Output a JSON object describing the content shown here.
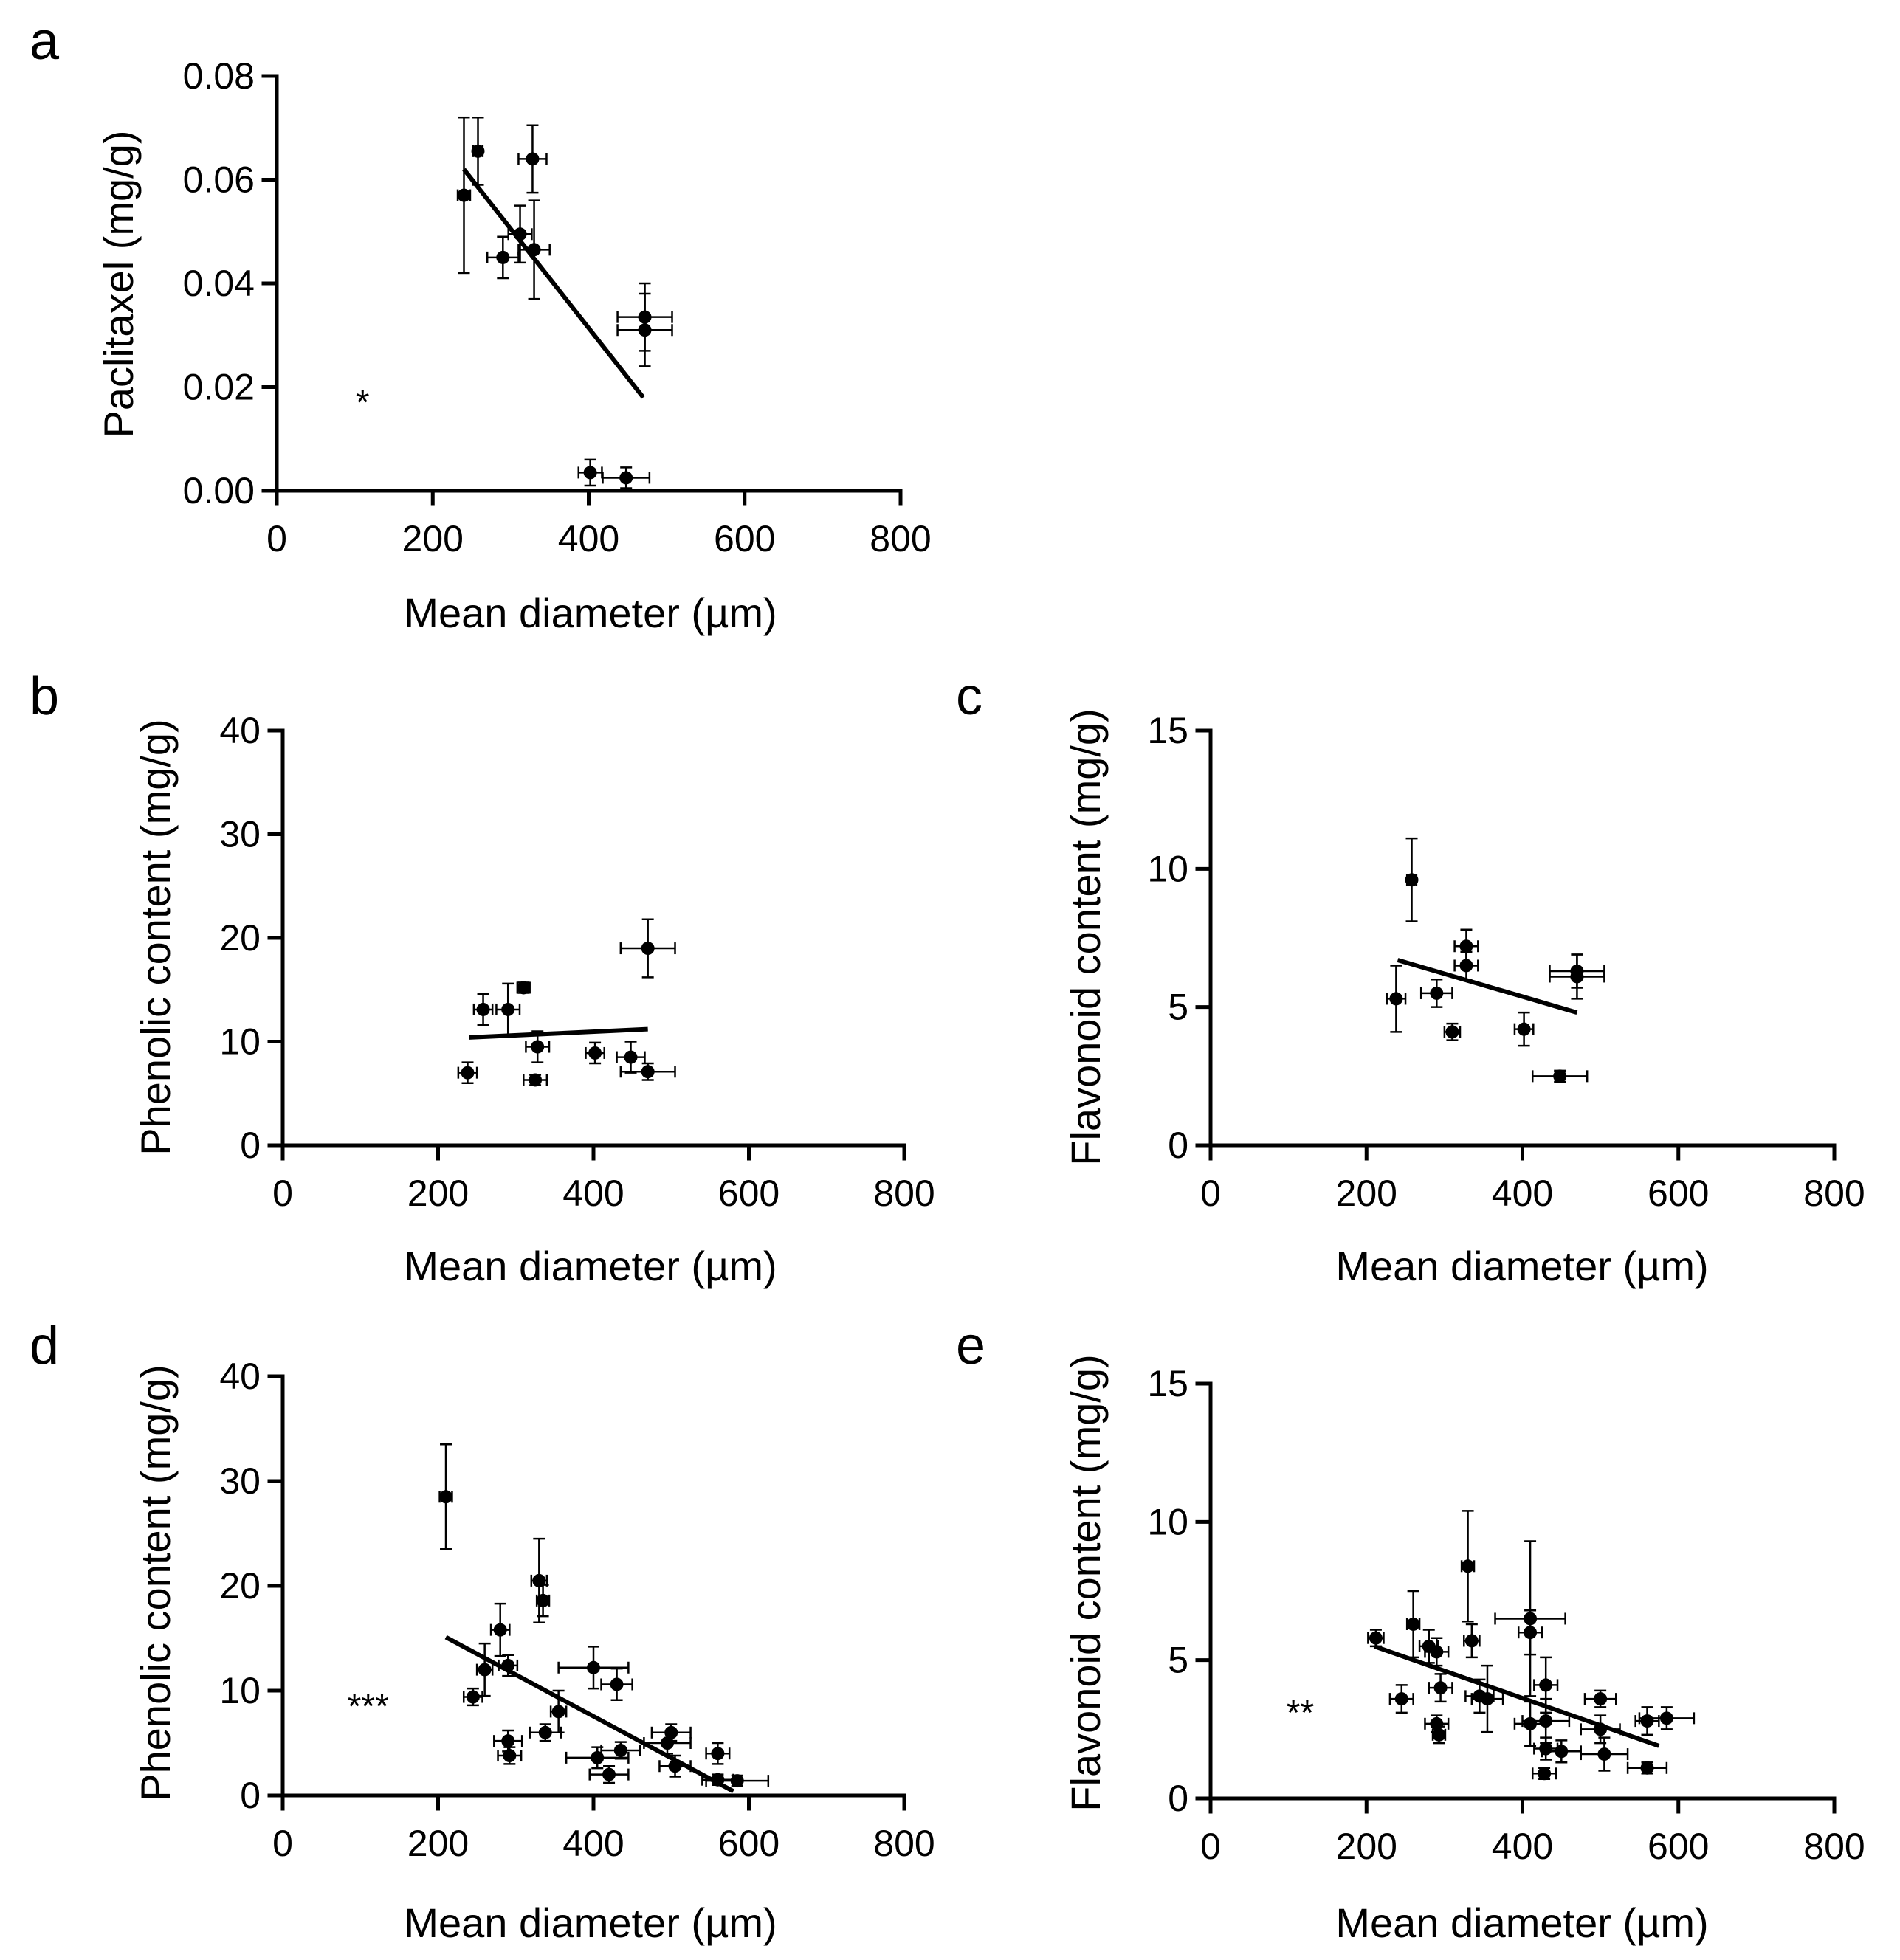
{
  "figure": {
    "colors": {
      "ink": "#000000",
      "background": "#ffffff"
    },
    "panels": [
      "a",
      "b",
      "c",
      "d",
      "e"
    ]
  },
  "chart_data": [
    {
      "id": "a",
      "type": "scatter",
      "panel_label": "a",
      "xlabel": "Mean diameter (µm)",
      "ylabel": "Paclitaxel (mg/g)",
      "xlim": [
        0,
        800
      ],
      "ylim": [
        0,
        0.08
      ],
      "xticks": [
        0,
        200,
        400,
        600,
        800
      ],
      "xtick_labels": [
        "0",
        "200",
        "400",
        "600",
        "800"
      ],
      "yticks": [
        0,
        0.02,
        0.04,
        0.06,
        0.08
      ],
      "ytick_labels": [
        "0.00",
        "0.02",
        "0.04",
        "0.06",
        "0.08"
      ],
      "significance": "*",
      "significance_at": [
        110,
        0.017
      ],
      "fit_line": [
        [
          240,
          0.062
        ],
        [
          470,
          0.018
        ]
      ],
      "points": [
        {
          "x": 240,
          "y": 0.057,
          "xerr": 8,
          "yerr": 0.015
        },
        {
          "x": 258,
          "y": 0.0655,
          "xerr": 6,
          "yerr": 0.0065
        },
        {
          "x": 290,
          "y": 0.045,
          "xerr": 20,
          "yerr": 0.004
        },
        {
          "x": 312,
          "y": 0.0495,
          "xerr": 15,
          "yerr": 0.0055
        },
        {
          "x": 328,
          "y": 0.064,
          "xerr": 18,
          "yerr": 0.0065
        },
        {
          "x": 330,
          "y": 0.0465,
          "xerr": 20,
          "yerr": 0.0095
        },
        {
          "x": 472,
          "y": 0.0335,
          "xerr": 35,
          "yerr": 0.0065
        },
        {
          "x": 472,
          "y": 0.031,
          "xerr": 35,
          "yerr": 0.007
        },
        {
          "x": 402,
          "y": 0.0035,
          "xerr": 15,
          "yerr": 0.0025
        },
        {
          "x": 448,
          "y": 0.0025,
          "xerr": 30,
          "yerr": 0.002
        }
      ]
    },
    {
      "id": "b",
      "type": "scatter",
      "panel_label": "b",
      "xlabel": "Mean diameter (µm)",
      "ylabel": "Phenolic content (mg/g)",
      "xlim": [
        0,
        800
      ],
      "ylim": [
        0,
        40
      ],
      "xticks": [
        0,
        200,
        400,
        600,
        800
      ],
      "xtick_labels": [
        "0",
        "200",
        "400",
        "600",
        "800"
      ],
      "yticks": [
        0,
        10,
        20,
        30,
        40
      ],
      "ytick_labels": [
        "0",
        "10",
        "20",
        "30",
        "40"
      ],
      "significance": "",
      "fit_line": [
        [
          240,
          10.4
        ],
        [
          470,
          11.2
        ]
      ],
      "points": [
        {
          "x": 238,
          "y": 7.0,
          "xerr": 12,
          "yerr": 1.0
        },
        {
          "x": 258,
          "y": 13.1,
          "xerr": 12,
          "yerr": 1.5
        },
        {
          "x": 290,
          "y": 13.1,
          "xerr": 15,
          "yerr": 2.5
        },
        {
          "x": 310,
          "y": 15.2,
          "xerr": 8,
          "yerr": 0.5
        },
        {
          "x": 328,
          "y": 9.5,
          "xerr": 15,
          "yerr": 1.5
        },
        {
          "x": 325,
          "y": 6.3,
          "xerr": 15,
          "yerr": 0.5
        },
        {
          "x": 402,
          "y": 8.9,
          "xerr": 12,
          "yerr": 1.0
        },
        {
          "x": 448,
          "y": 8.5,
          "xerr": 18,
          "yerr": 1.5
        },
        {
          "x": 470,
          "y": 19.0,
          "xerr": 35,
          "yerr": 2.8
        },
        {
          "x": 470,
          "y": 7.1,
          "xerr": 35,
          "yerr": 0.8
        }
      ]
    },
    {
      "id": "c",
      "type": "scatter",
      "panel_label": "c",
      "xlabel": "Mean diameter (µm)",
      "ylabel": "Flavonoid content (mg/g)",
      "xlim": [
        0,
        800
      ],
      "ylim": [
        0,
        15
      ],
      "xticks": [
        0,
        200,
        400,
        600,
        800
      ],
      "xtick_labels": [
        "0",
        "200",
        "400",
        "600",
        "800"
      ],
      "yticks": [
        0,
        5,
        10,
        15
      ],
      "ytick_labels": [
        "0",
        "5",
        "10",
        "15"
      ],
      "significance": "",
      "fit_line": [
        [
          240,
          6.7
        ],
        [
          470,
          4.8
        ]
      ],
      "points": [
        {
          "x": 238,
          "y": 5.3,
          "xerr": 12,
          "yerr": 1.2
        },
        {
          "x": 258,
          "y": 9.6,
          "xerr": 6,
          "yerr": 1.5
        },
        {
          "x": 290,
          "y": 5.5,
          "xerr": 20,
          "yerr": 0.5
        },
        {
          "x": 310,
          "y": 4.1,
          "xerr": 10,
          "yerr": 0.3
        },
        {
          "x": 328,
          "y": 7.2,
          "xerr": 15,
          "yerr": 0.6
        },
        {
          "x": 328,
          "y": 6.5,
          "xerr": 15,
          "yerr": 0.5
        },
        {
          "x": 402,
          "y": 4.2,
          "xerr": 12,
          "yerr": 0.6
        },
        {
          "x": 448,
          "y": 2.5,
          "xerr": 35,
          "yerr": 0.2
        },
        {
          "x": 470,
          "y": 6.3,
          "xerr": 35,
          "yerr": 0.6
        },
        {
          "x": 470,
          "y": 6.1,
          "xerr": 35,
          "yerr": 0.8
        }
      ]
    },
    {
      "id": "d",
      "type": "scatter",
      "panel_label": "d",
      "xlabel": "Mean diameter (µm)",
      "ylabel": "Phenolic content (mg/g)",
      "xlim": [
        0,
        800
      ],
      "ylim": [
        0,
        40
      ],
      "xticks": [
        0,
        200,
        400,
        600,
        800
      ],
      "xtick_labels": [
        "0",
        "200",
        "400",
        "600",
        "800"
      ],
      "yticks": [
        0,
        10,
        20,
        30,
        40
      ],
      "ytick_labels": [
        "0",
        "10",
        "20",
        "30",
        "40"
      ],
      "significance": "***",
      "significance_at": [
        110,
        8.5
      ],
      "fit_line": [
        [
          210,
          15.1
        ],
        [
          580,
          0.4
        ]
      ],
      "points": [
        {
          "x": 210,
          "y": 28.5,
          "xerr": 8,
          "yerr": 5.0
        },
        {
          "x": 245,
          "y": 9.4,
          "xerr": 12,
          "yerr": 0.8
        },
        {
          "x": 260,
          "y": 12.0,
          "xerr": 10,
          "yerr": 2.5
        },
        {
          "x": 280,
          "y": 15.8,
          "xerr": 12,
          "yerr": 2.5
        },
        {
          "x": 290,
          "y": 12.4,
          "xerr": 12,
          "yerr": 1.0
        },
        {
          "x": 290,
          "y": 5.2,
          "xerr": 18,
          "yerr": 1.0
        },
        {
          "x": 292,
          "y": 3.8,
          "xerr": 15,
          "yerr": 0.8
        },
        {
          "x": 330,
          "y": 20.5,
          "xerr": 10,
          "yerr": 4.0
        },
        {
          "x": 335,
          "y": 18.6,
          "xerr": 8,
          "yerr": 1.5
        },
        {
          "x": 338,
          "y": 6.0,
          "xerr": 20,
          "yerr": 0.8
        },
        {
          "x": 355,
          "y": 8.0,
          "xerr": 10,
          "yerr": 2.0
        },
        {
          "x": 400,
          "y": 12.2,
          "xerr": 45,
          "yerr": 2.0
        },
        {
          "x": 405,
          "y": 3.6,
          "xerr": 40,
          "yerr": 1.0
        },
        {
          "x": 420,
          "y": 2.0,
          "xerr": 25,
          "yerr": 0.8
        },
        {
          "x": 430,
          "y": 10.6,
          "xerr": 20,
          "yerr": 1.5
        },
        {
          "x": 435,
          "y": 4.3,
          "xerr": 25,
          "yerr": 0.8
        },
        {
          "x": 500,
          "y": 6.0,
          "xerr": 25,
          "yerr": 0.8
        },
        {
          "x": 495,
          "y": 5.0,
          "xerr": 30,
          "yerr": 1.0
        },
        {
          "x": 505,
          "y": 2.8,
          "xerr": 20,
          "yerr": 1.0
        },
        {
          "x": 560,
          "y": 4.0,
          "xerr": 15,
          "yerr": 1.0
        },
        {
          "x": 560,
          "y": 1.5,
          "xerr": 20,
          "yerr": 0.5
        },
        {
          "x": 585,
          "y": 1.4,
          "xerr": 40,
          "yerr": 0.5
        }
      ]
    },
    {
      "id": "e",
      "type": "scatter",
      "panel_label": "e",
      "xlabel": "Mean diameter (µm)",
      "ylabel": "Flavonoid content (mg/g)",
      "xlim": [
        0,
        800
      ],
      "ylim": [
        0,
        15
      ],
      "xticks": [
        0,
        200,
        400,
        600,
        800
      ],
      "xtick_labels": [
        "0",
        "200",
        "400",
        "600",
        "800"
      ],
      "yticks": [
        0,
        5,
        10,
        15
      ],
      "ytick_labels": [
        "0",
        "5",
        "10",
        "15"
      ],
      "significance": "**",
      "significance_at": [
        115,
        3.1
      ],
      "fit_line": [
        [
          210,
          5.5
        ],
        [
          575,
          1.9
        ]
      ],
      "points": [
        {
          "x": 212,
          "y": 5.8,
          "xerr": 10,
          "yerr": 0.3
        },
        {
          "x": 245,
          "y": 3.6,
          "xerr": 15,
          "yerr": 0.5
        },
        {
          "x": 260,
          "y": 6.3,
          "xerr": 8,
          "yerr": 1.2
        },
        {
          "x": 280,
          "y": 5.5,
          "xerr": 12,
          "yerr": 0.6
        },
        {
          "x": 290,
          "y": 5.3,
          "xerr": 15,
          "yerr": 0.5
        },
        {
          "x": 295,
          "y": 4.0,
          "xerr": 15,
          "yerr": 0.5
        },
        {
          "x": 290,
          "y": 2.7,
          "xerr": 15,
          "yerr": 0.3
        },
        {
          "x": 293,
          "y": 2.3,
          "xerr": 8,
          "yerr": 0.3
        },
        {
          "x": 330,
          "y": 8.4,
          "xerr": 8,
          "yerr": 2.0
        },
        {
          "x": 335,
          "y": 5.7,
          "xerr": 10,
          "yerr": 0.6
        },
        {
          "x": 345,
          "y": 3.7,
          "xerr": 18,
          "yerr": 0.6
        },
        {
          "x": 355,
          "y": 3.6,
          "xerr": 20,
          "yerr": 1.2
        },
        {
          "x": 410,
          "y": 6.5,
          "xerr": 45,
          "yerr": 2.8
        },
        {
          "x": 410,
          "y": 6.0,
          "xerr": 15,
          "yerr": 0.8
        },
        {
          "x": 410,
          "y": 2.7,
          "xerr": 20,
          "yerr": 0.8
        },
        {
          "x": 430,
          "y": 4.1,
          "xerr": 15,
          "yerr": 1.0
        },
        {
          "x": 430,
          "y": 2.8,
          "xerr": 30,
          "yerr": 0.8
        },
        {
          "x": 430,
          "y": 1.8,
          "xerr": 15,
          "yerr": 0.4
        },
        {
          "x": 428,
          "y": 0.9,
          "xerr": 15,
          "yerr": 0.2
        },
        {
          "x": 450,
          "y": 1.7,
          "xerr": 25,
          "yerr": 0.4
        },
        {
          "x": 500,
          "y": 3.6,
          "xerr": 20,
          "yerr": 0.3
        },
        {
          "x": 500,
          "y": 2.5,
          "xerr": 25,
          "yerr": 0.5
        },
        {
          "x": 505,
          "y": 1.6,
          "xerr": 30,
          "yerr": 0.6
        },
        {
          "x": 560,
          "y": 2.8,
          "xerr": 15,
          "yerr": 0.5
        },
        {
          "x": 560,
          "y": 1.1,
          "xerr": 25,
          "yerr": 0.2
        },
        {
          "x": 585,
          "y": 2.9,
          "xerr": 35,
          "yerr": 0.4
        }
      ]
    }
  ]
}
